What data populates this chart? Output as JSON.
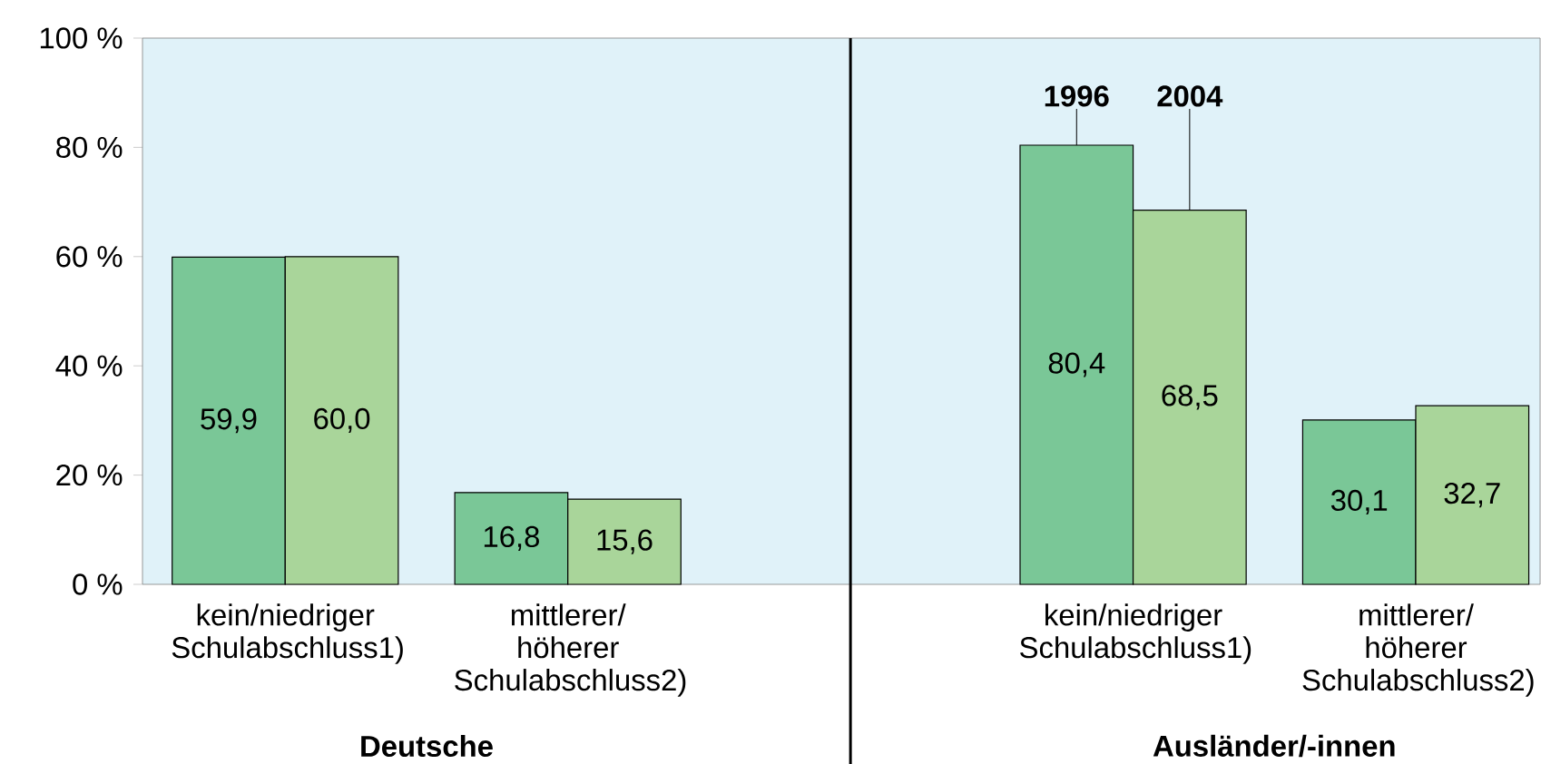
{
  "chart_data": {
    "type": "bar",
    "categories": [
      "kein/niedriger Schulabschluss1)",
      "mittlerer/ höherer Schulabschluss2)",
      null,
      "kein/niedriger Schulabschluss1)",
      "mittlerer/ höherer Schulabschluss2)"
    ],
    "series": [
      {
        "name": "1996",
        "color": "#7ac797",
        "values": [
          59.9,
          16.8,
          null,
          80.4,
          30.1
        ],
        "value_labels": [
          "59,9",
          "16,8",
          null,
          "80,4",
          "30,1"
        ]
      },
      {
        "name": "2004",
        "color": "#a9d59a",
        "values": [
          60.0,
          15.6,
          null,
          68.5,
          32.7
        ],
        "value_labels": [
          "60,0",
          "15,6",
          null,
          "68,5",
          "32,7"
        ]
      }
    ],
    "ylim": [
      0,
      100
    ],
    "yticks": [
      {
        "value": 0,
        "label": "0 %"
      },
      {
        "value": 20,
        "label": "20 %"
      },
      {
        "value": 40,
        "label": "40 %"
      },
      {
        "value": 60,
        "label": "60 %"
      },
      {
        "value": 80,
        "label": "80 %"
      },
      {
        "value": 100,
        "label": "100 %"
      }
    ],
    "annotations": [
      "Deutsche",
      "Ausländer/-innen"
    ],
    "legend": false
  }
}
